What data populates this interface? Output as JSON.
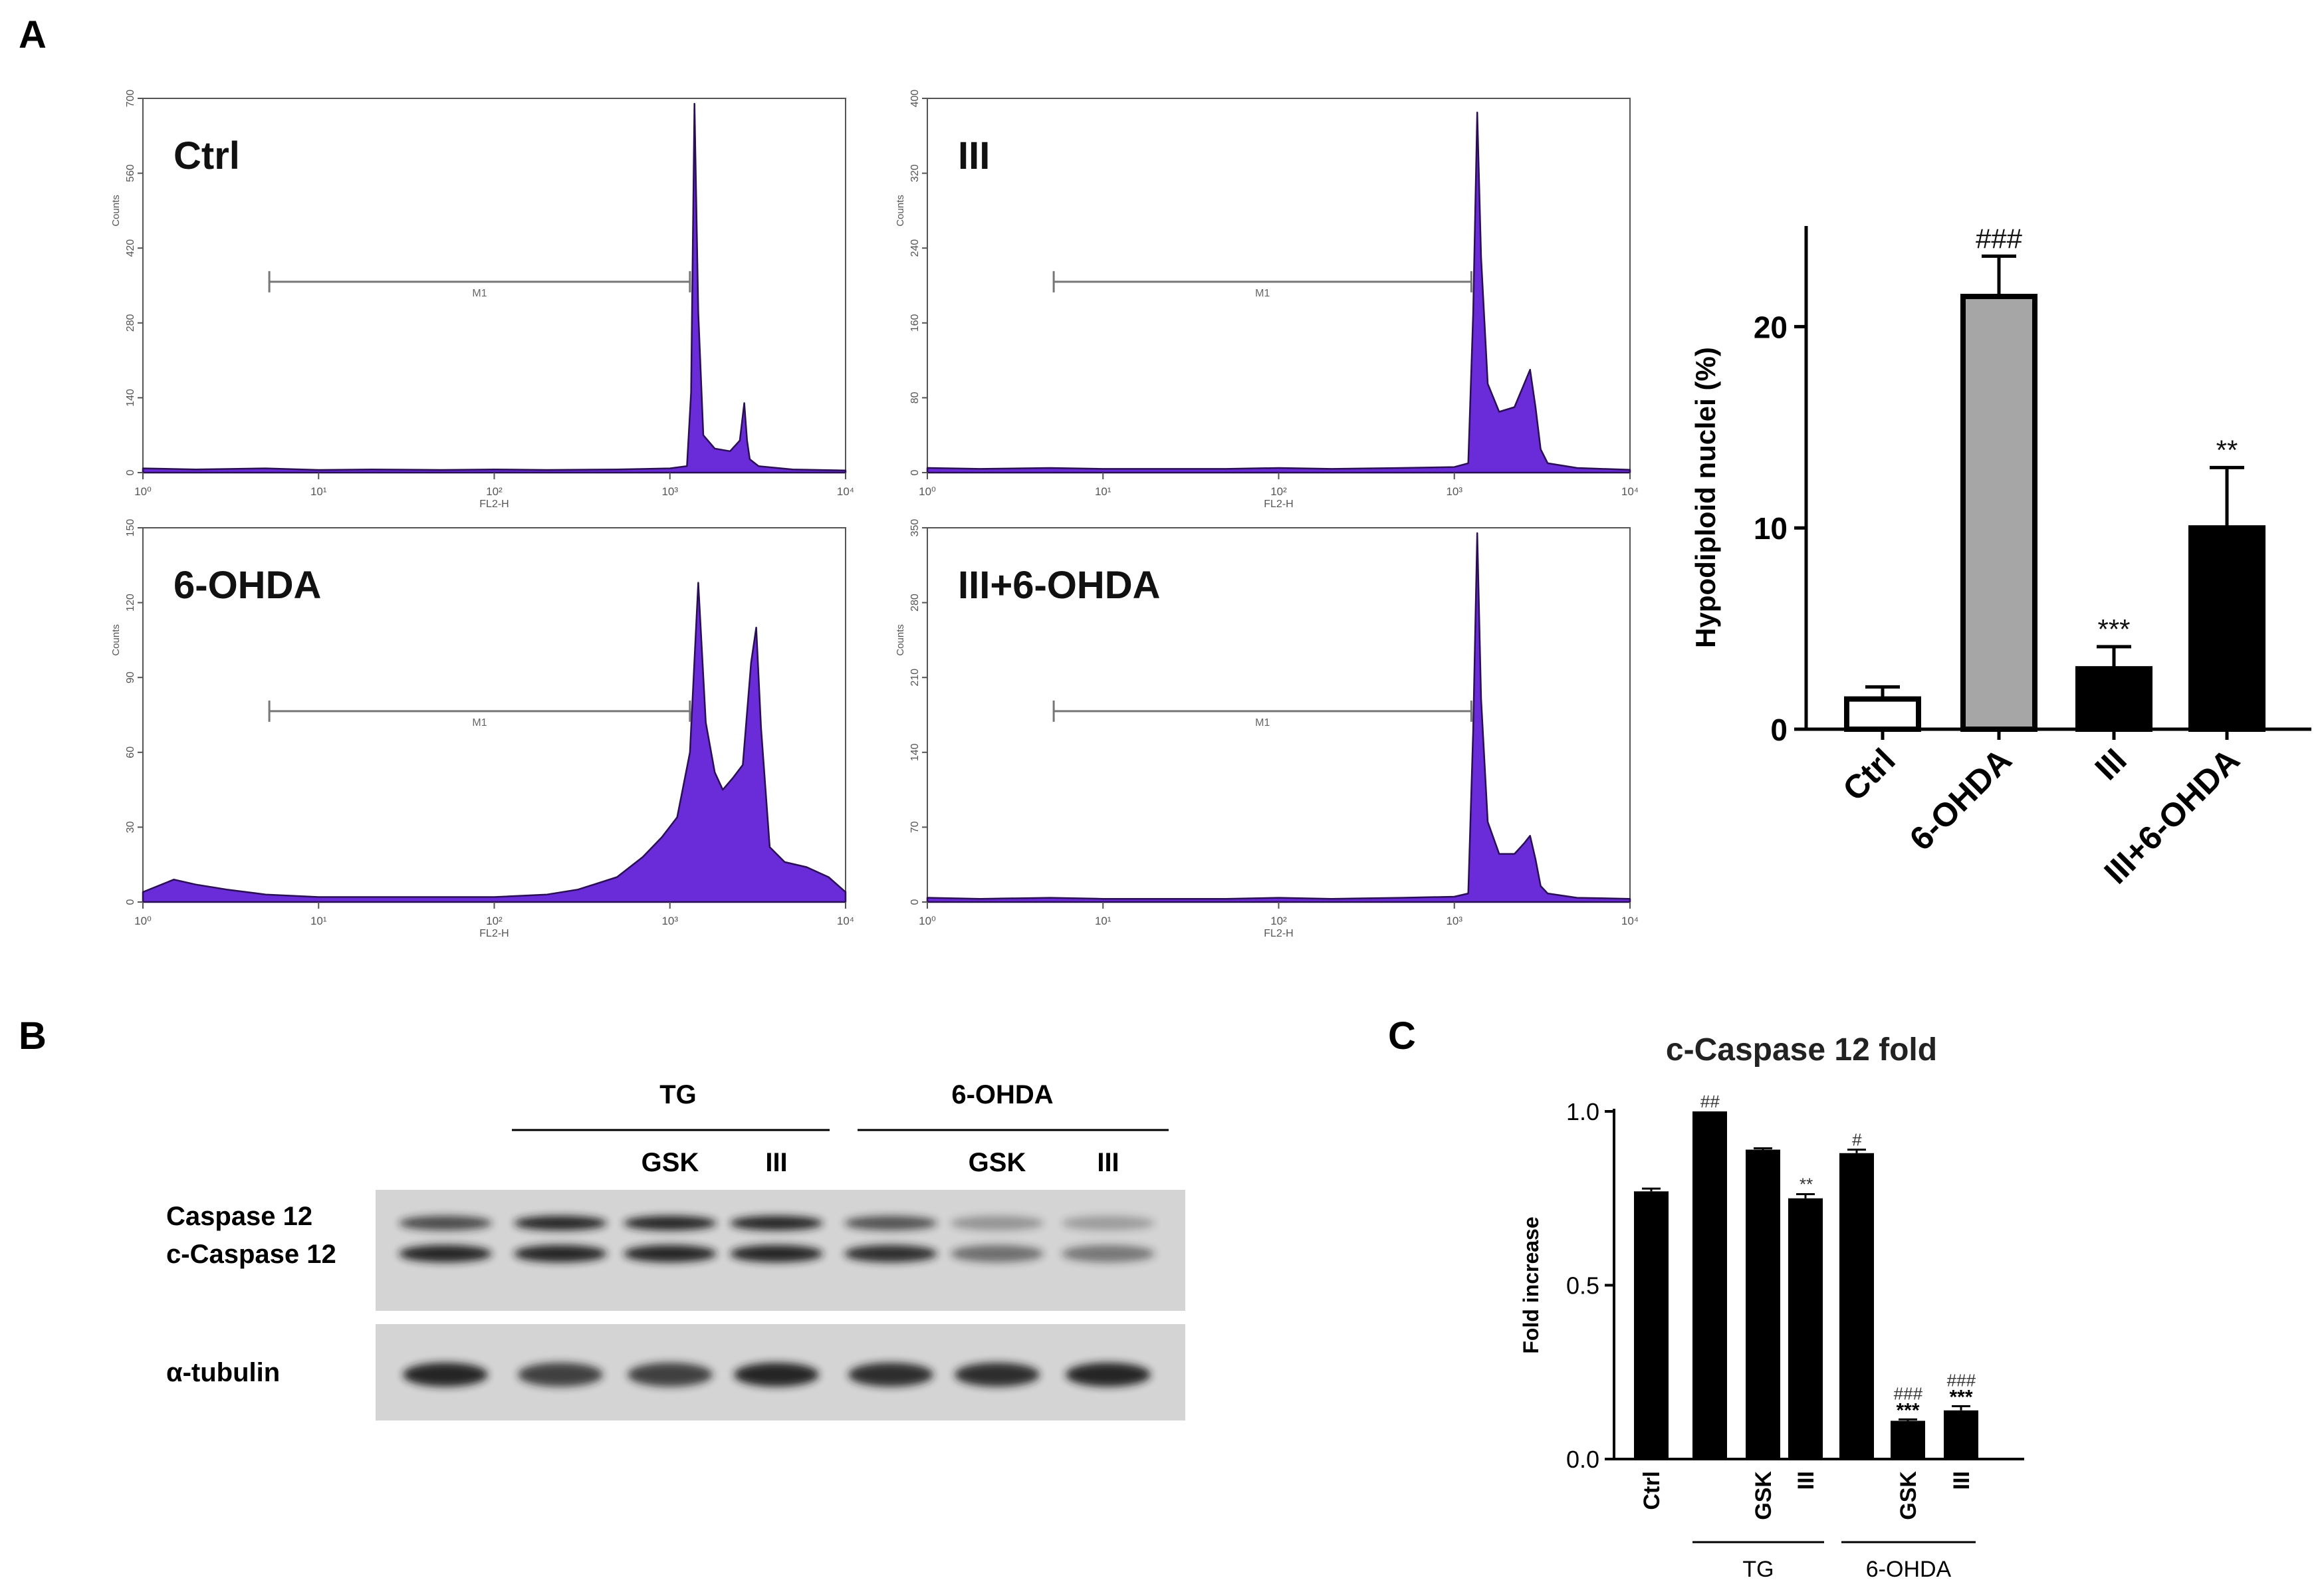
{
  "panel_labels": {
    "a": "A",
    "b": "B",
    "c": "C"
  },
  "colors": {
    "histogram_fill": "#6a2bd9",
    "histogram_edge": "#2a0f55",
    "bar_black": "#000000",
    "bar_grey": "#a6a6a6",
    "blot_bg": "#d4d4d4",
    "band": "#1a1a1a"
  },
  "chart_data": [
    {
      "type": "area",
      "panel": "A",
      "title": "Ctrl",
      "xlabel": "FL2-H",
      "ylabel": "Counts",
      "xscale": "log",
      "xlim": [
        1,
        10000
      ],
      "ylim": [
        0,
        700
      ],
      "x_tick_labels": [
        "10⁰",
        "10¹",
        "10²",
        "10³",
        "10⁴"
      ],
      "y_tick_labels": [
        "0",
        "140",
        "280",
        "420",
        "560",
        "700"
      ],
      "marker_label": "M1",
      "marker_range": [
        1.3,
        1300
      ],
      "x": [
        1,
        2,
        5,
        10,
        20,
        50,
        100,
        200,
        500,
        1000,
        1250,
        1320,
        1380,
        1450,
        1550,
        1800,
        2200,
        2500,
        2650,
        2750,
        2850,
        3200,
        5000,
        10000
      ],
      "y": [
        8,
        6,
        8,
        5,
        6,
        5,
        6,
        5,
        6,
        8,
        12,
        150,
        690,
        300,
        70,
        45,
        40,
        60,
        130,
        60,
        25,
        12,
        6,
        4
      ]
    },
    {
      "type": "area",
      "panel": "A",
      "title": "III",
      "xlabel": "FL2-H",
      "ylabel": "Counts",
      "xscale": "log",
      "xlim": [
        1,
        10000
      ],
      "ylim": [
        0,
        400
      ],
      "x_tick_labels": [
        "10⁰",
        "10¹",
        "10²",
        "10³",
        "10⁴"
      ],
      "y_tick_labels": [
        "0",
        "80",
        "160",
        "240",
        "320",
        "400"
      ],
      "marker_label": "M1",
      "marker_range": [
        1.3,
        1250
      ],
      "x": [
        1,
        2,
        5,
        10,
        20,
        50,
        100,
        200,
        500,
        1000,
        1200,
        1280,
        1350,
        1420,
        1550,
        1800,
        2200,
        2500,
        2700,
        2900,
        3100,
        3400,
        5000,
        10000
      ],
      "y": [
        5,
        4,
        5,
        4,
        4,
        4,
        5,
        4,
        5,
        6,
        10,
        170,
        385,
        230,
        95,
        65,
        70,
        95,
        110,
        70,
        25,
        10,
        5,
        3
      ]
    },
    {
      "type": "area",
      "panel": "A",
      "title": "6-OHDA",
      "xlabel": "FL2-H",
      "ylabel": "Counts",
      "xscale": "log",
      "xlim": [
        1,
        10000
      ],
      "ylim": [
        0,
        150
      ],
      "x_tick_labels": [
        "10⁰",
        "10¹",
        "10²",
        "10³",
        "10⁴"
      ],
      "y_tick_labels": [
        "0",
        "30",
        "60",
        "90",
        "120",
        "150"
      ],
      "marker_label": "M1",
      "marker_range": [
        1.3,
        1300
      ],
      "x": [
        1,
        1.5,
        2,
        3,
        5,
        10,
        20,
        50,
        100,
        200,
        300,
        500,
        700,
        900,
        1100,
        1300,
        1450,
        1600,
        1800,
        2000,
        2300,
        2600,
        2900,
        3100,
        3300,
        3700,
        4500,
        6000,
        8000,
        10000
      ],
      "y": [
        4,
        9,
        7,
        5,
        3,
        2,
        2,
        2,
        2,
        3,
        5,
        10,
        18,
        26,
        34,
        60,
        128,
        72,
        52,
        45,
        50,
        55,
        96,
        110,
        70,
        22,
        16,
        14,
        10,
        4
      ]
    },
    {
      "type": "area",
      "panel": "A",
      "title": "III+6-OHDA",
      "xlabel": "FL2-H",
      "ylabel": "Counts",
      "xscale": "log",
      "xlim": [
        1,
        10000
      ],
      "ylim": [
        0,
        350
      ],
      "x_tick_labels": [
        "10⁰",
        "10¹",
        "10²",
        "10³",
        "10⁴"
      ],
      "y_tick_labels": [
        "0",
        "70",
        "140",
        "210",
        "280",
        "350"
      ],
      "marker_label": "M1",
      "marker_range": [
        1.3,
        1250
      ],
      "x": [
        1,
        2,
        5,
        10,
        20,
        50,
        100,
        200,
        500,
        1000,
        1200,
        1280,
        1350,
        1420,
        1550,
        1800,
        2200,
        2500,
        2700,
        2900,
        3100,
        3400,
        5000,
        10000
      ],
      "y": [
        4,
        3,
        4,
        3,
        3,
        3,
        4,
        3,
        4,
        5,
        8,
        160,
        345,
        190,
        75,
        45,
        45,
        55,
        62,
        40,
        15,
        8,
        4,
        3
      ]
    },
    {
      "type": "bar",
      "panel": "A",
      "categories": [
        "Ctrl",
        "6-OHDA",
        "III",
        "III+6-OHDA"
      ],
      "values": [
        1.5,
        21.5,
        3.0,
        10.0
      ],
      "errors": [
        0.6,
        2.0,
        1.1,
        3.0
      ],
      "annotations": [
        "",
        "###",
        "***",
        "**"
      ],
      "bar_colors": [
        "#ffffff",
        "#a6a6a6",
        "#000000",
        "#000000"
      ],
      "ylabel": "Hypodiploid nuclei (%)",
      "xlabel": "",
      "ylim": [
        0,
        25
      ],
      "y_ticks": [
        0,
        10,
        20
      ]
    },
    {
      "type": "bar",
      "panel": "C",
      "title": "c-Caspase 12 fold",
      "ylabel": "Fold increase",
      "ylim": [
        0,
        1.0
      ],
      "y_tick_labels": [
        "0.0",
        "0.5",
        "1.0"
      ],
      "categories": [
        "Ctrl",
        "",
        "GSK",
        "III",
        "",
        "GSK",
        "III"
      ],
      "values": [
        0.77,
        1.0,
        0.89,
        0.75,
        0.88,
        0.11,
        0.14
      ],
      "errors": [
        0.008,
        0.0,
        0.004,
        0.012,
        0.01,
        0.004,
        0.012
      ],
      "annotations_top": [
        "",
        "##",
        "",
        "**",
        "#",
        "###",
        "###"
      ],
      "annotations_second": [
        "",
        "",
        "",
        "",
        "",
        "***",
        "***"
      ],
      "groups": [
        {
          "label": "TG",
          "from": 1,
          "to": 3
        },
        {
          "label": "6-OHDA",
          "from": 4,
          "to": 6
        }
      ]
    }
  ],
  "blot": {
    "group_labels": [
      {
        "label": "TG"
      },
      {
        "label": "6-OHDA"
      }
    ],
    "lane_labels": [
      "",
      "",
      "GSK",
      "III",
      "",
      "GSK",
      "III"
    ],
    "row_labels": {
      "caspase12": "Caspase 12",
      "c_caspase12": "c-Caspase 12",
      "tubulin": "α-tubulin"
    },
    "caspase12_intensity": [
      0.75,
      0.95,
      0.95,
      0.95,
      0.7,
      0.35,
      0.3
    ],
    "c_caspase12_intensity": [
      0.95,
      0.95,
      0.95,
      0.95,
      0.9,
      0.55,
      0.5
    ],
    "tubulin_intensity": [
      0.95,
      0.8,
      0.8,
      0.95,
      0.9,
      0.9,
      0.95
    ]
  }
}
